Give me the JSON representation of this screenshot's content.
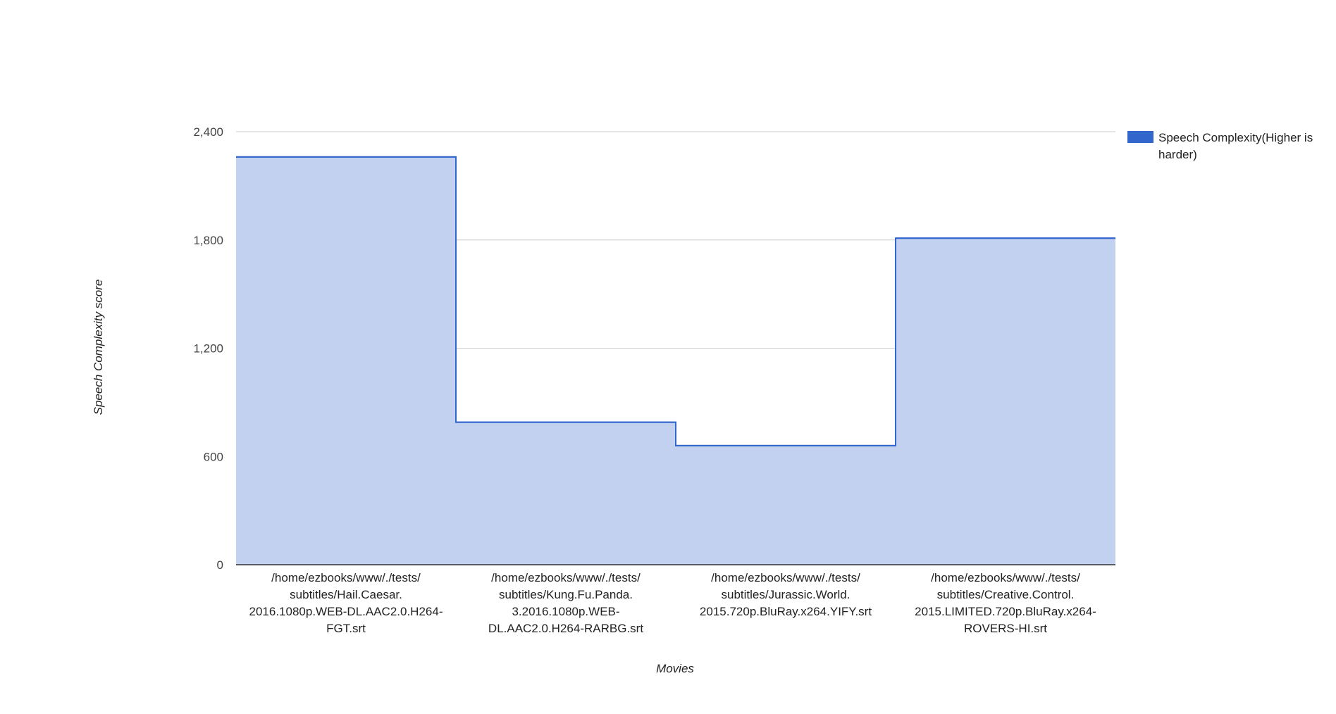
{
  "chart_data": {
    "type": "area",
    "subtype": "stepped",
    "title": "",
    "xlabel": "Movies",
    "ylabel": "Speech Complexity score",
    "ylim": [
      0,
      2400
    ],
    "yticks": [
      0,
      600,
      1200,
      1800,
      2400
    ],
    "ytick_labels": [
      "0",
      "600",
      "1,200",
      "1,800",
      "2,400"
    ],
    "grid": true,
    "legend_position": "right",
    "categories": [
      "/home/ezbooks/www/./tests/subtitles/Hail.Caesar.2016.1080p.WEB-DL.AAC2.0.H264-FGT.srt",
      "/home/ezbooks/www/./tests/subtitles/Kung.Fu.Panda.3.2016.1080p.WEB-DL.AAC2.0.H264-RARBG.srt",
      "/home/ezbooks/www/./tests/subtitles/Jurassic.World.2015.720p.BluRay.x264.YIFY.srt",
      "/home/ezbooks/www/./tests/subtitles/Creative.Control.2015.LIMITED.720p.BluRay.x264-ROVERS-HI.srt"
    ],
    "category_label_lines": [
      [
        "/home/ezbooks/www/./tests/",
        "subtitles/Hail.Caesar.",
        "2016.1080p.WEB-DL.AAC2.0.H264-",
        "FGT.srt"
      ],
      [
        "/home/ezbooks/www/./tests/",
        "subtitles/Kung.Fu.Panda.",
        "3.2016.1080p.WEB-",
        "DL.AAC2.0.H264-RARBG.srt"
      ],
      [
        "/home/ezbooks/www/./tests/",
        "subtitles/Jurassic.World.",
        "2015.720p.BluRay.x264.YIFY.srt"
      ],
      [
        "/home/ezbooks/www/./tests/",
        "subtitles/Creative.Control.",
        "2015.LIMITED.720p.BluRay.x264-",
        "ROVERS-HI.srt"
      ]
    ],
    "series": [
      {
        "name": "Speech Complexity(Higher is harder)",
        "legend_lines": [
          "Speech Complexity(Higher is",
          "harder)"
        ],
        "values": [
          2260,
          790,
          660,
          1810
        ],
        "color": "#3366cc",
        "fill_color": "#c2d1f0"
      }
    ]
  }
}
